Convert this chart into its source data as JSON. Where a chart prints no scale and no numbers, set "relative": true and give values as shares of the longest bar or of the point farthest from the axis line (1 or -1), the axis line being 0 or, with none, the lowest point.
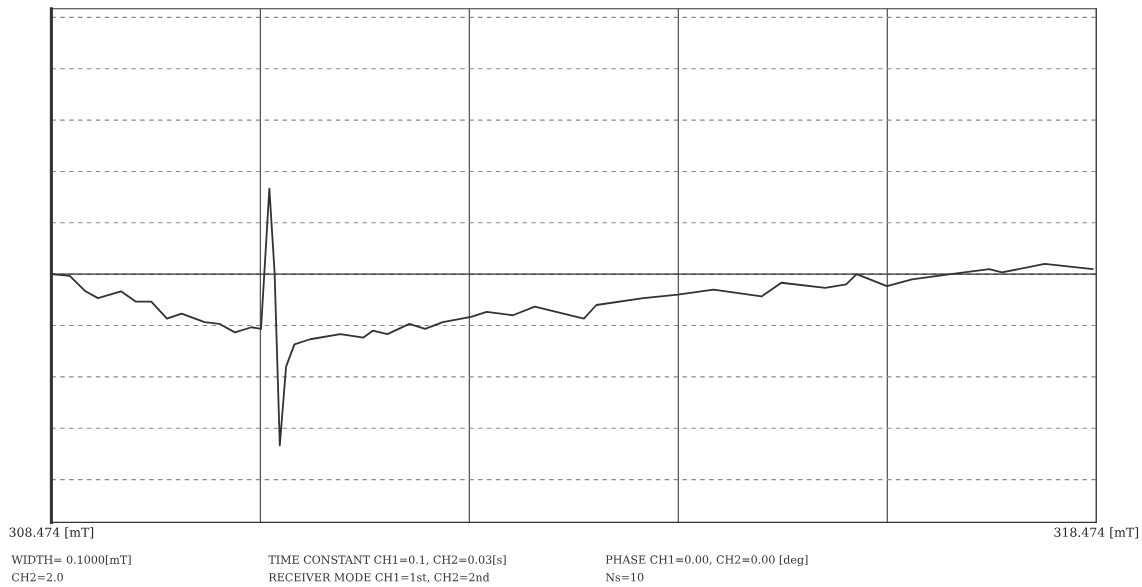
{
  "chart_data": {
    "type": "line",
    "relative": true,
    "x": [
      308.474,
      308.65,
      308.8,
      308.92,
      309.14,
      309.28,
      309.43,
      309.58,
      309.72,
      309.94,
      310.08,
      310.23,
      310.39,
      310.48,
      310.56,
      310.61,
      310.66,
      310.72,
      310.8,
      310.95,
      311.24,
      311.46,
      311.55,
      311.69,
      311.9,
      312.05,
      312.22,
      312.49,
      312.64,
      312.89,
      313.1,
      313.57,
      313.69,
      314.14,
      314.47,
      314.81,
      315.27,
      315.46,
      315.88,
      316.08,
      316.18,
      316.47,
      316.71,
      317.08,
      317.45,
      317.57,
      317.98,
      318.44
    ],
    "series": [
      {
        "color": "#333333",
        "values": [
          0,
          -0.01,
          -0.1,
          -0.14,
          -0.1,
          -0.16,
          -0.16,
          -0.26,
          -0.23,
          -0.28,
          -0.29,
          -0.34,
          -0.31,
          -0.32,
          0.5,
          0.01,
          -1.0,
          -0.54,
          -0.41,
          -0.38,
          -0.35,
          -0.37,
          -0.33,
          -0.35,
          -0.29,
          -0.32,
          -0.28,
          -0.25,
          -0.22,
          -0.24,
          -0.19,
          -0.26,
          -0.18,
          -0.14,
          -0.12,
          -0.09,
          -0.13,
          -0.05,
          -0.08,
          -0.06,
          0,
          -0.07,
          -0.03,
          0,
          0.03,
          0.01,
          0.06,
          0.03
        ]
      }
    ],
    "xlim": [
      308.474,
      318.474
    ],
    "xticks": [
      {
        "value": 308.474,
        "label": "308.474 [mT]"
      },
      {
        "value": 310.474,
        "label": null
      },
      {
        "value": 312.474,
        "label": null
      },
      {
        "value": 314.474,
        "label": null
      },
      {
        "value": 316.474,
        "label": null
      },
      {
        "value": 318.474,
        "label": "318.474 [mT]"
      }
    ],
    "ref_lines": [
      {
        "axis": "y",
        "value": 0,
        "color": "#333333"
      }
    ],
    "grid": true,
    "legend": false,
    "marker": "none",
    "line_style": "solid",
    "annotations": [
      "WIDTH= 0.1000[mT]",
      "TIME CONSTANT CH1=0.1, CH2=0.03[s]",
      "PHASE CH1=0.00, CH2=0.00 [deg]",
      "CH2=2.0",
      "RECEIVER MODE CH1=1st, CH2=2nd",
      "Ns=10"
    ]
  }
}
